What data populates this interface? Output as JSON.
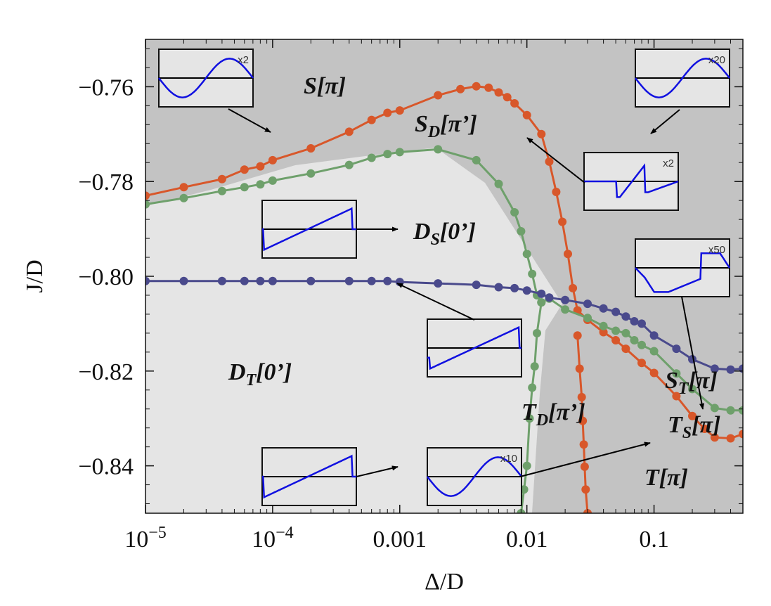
{
  "chart_data": {
    "type": "line",
    "xlabel": "Δ/D",
    "ylabel": "J/D",
    "xscale": "log",
    "xlim": [
      1e-05,
      0.5
    ],
    "ylim": [
      -0.85,
      -0.75
    ],
    "grid": false,
    "legend": "none",
    "xticks": [
      {
        "value": 1e-05,
        "label": "10",
        "exp": "−5"
      },
      {
        "value": 0.0001,
        "label": "10",
        "exp": "−4"
      },
      {
        "value": 0.001,
        "label": "0.001"
      },
      {
        "value": 0.01,
        "label": "0.01"
      },
      {
        "value": 0.1,
        "label": "0.1"
      }
    ],
    "yticks": [
      {
        "value": -0.76,
        "label": "−0.76"
      },
      {
        "value": -0.78,
        "label": "−0.78"
      },
      {
        "value": -0.8,
        "label": "−0.80"
      },
      {
        "value": -0.82,
        "label": "−0.82"
      },
      {
        "value": -0.84,
        "label": "−0.84"
      }
    ],
    "colors": {
      "background_dark": "#c3c3c3",
      "background_light": "#e5e5e5",
      "orange": "#d8572a",
      "green": "#6ea06b",
      "purple": "#4a4a8c",
      "inset_wave": "#1010e0"
    },
    "series": [
      {
        "color": "orange",
        "points": [
          [
            1e-05,
            -0.783
          ],
          [
            2e-05,
            -0.7812
          ],
          [
            4e-05,
            -0.7795
          ],
          [
            6e-05,
            -0.7775
          ],
          [
            8e-05,
            -0.7768
          ],
          [
            0.0001,
            -0.7755
          ],
          [
            0.0002,
            -0.773
          ],
          [
            0.0004,
            -0.7695
          ],
          [
            0.0006,
            -0.767
          ],
          [
            0.0008,
            -0.7655
          ],
          [
            0.001,
            -0.765
          ],
          [
            0.002,
            -0.7618
          ],
          [
            0.003,
            -0.7605
          ],
          [
            0.004,
            -0.7599
          ],
          [
            0.005,
            -0.7602
          ],
          [
            0.006,
            -0.7612
          ],
          [
            0.007,
            -0.7622
          ],
          [
            0.008,
            -0.7635
          ],
          [
            0.01,
            -0.766
          ],
          [
            0.013,
            -0.77
          ],
          [
            0.015,
            -0.7758
          ],
          [
            0.017,
            -0.7822
          ],
          [
            0.019,
            -0.7885
          ],
          [
            0.021,
            -0.7953
          ],
          [
            0.023,
            -0.8025
          ],
          [
            0.025,
            -0.8072
          ],
          [
            0.03,
            -0.8092
          ],
          [
            0.04,
            -0.8118
          ],
          [
            0.05,
            -0.8135
          ],
          [
            0.06,
            -0.8153
          ],
          [
            0.08,
            -0.8183
          ],
          [
            0.1,
            -0.8204
          ],
          [
            0.15,
            -0.8253
          ],
          [
            0.2,
            -0.8295
          ],
          [
            0.25,
            -0.8322
          ],
          [
            0.3,
            -0.834
          ],
          [
            0.4,
            -0.8342
          ],
          [
            0.5,
            -0.8333
          ]
        ]
      },
      {
        "color": "orange",
        "points": [
          [
            0.025,
            -0.8125
          ],
          [
            0.026,
            -0.8195
          ],
          [
            0.027,
            -0.8255
          ],
          [
            0.0275,
            -0.8305
          ],
          [
            0.028,
            -0.8355
          ],
          [
            0.0285,
            -0.8402
          ],
          [
            0.029,
            -0.845
          ],
          [
            0.03,
            -0.85
          ]
        ]
      },
      {
        "color": "green",
        "points": [
          [
            1e-05,
            -0.7848
          ],
          [
            2e-05,
            -0.7835
          ],
          [
            4e-05,
            -0.782
          ],
          [
            6e-05,
            -0.7812
          ],
          [
            8e-05,
            -0.7806
          ],
          [
            0.0001,
            -0.7798
          ],
          [
            0.0002,
            -0.7783
          ],
          [
            0.0004,
            -0.7765
          ],
          [
            0.0006,
            -0.775
          ],
          [
            0.0008,
            -0.7742
          ],
          [
            0.001,
            -0.7738
          ],
          [
            0.002,
            -0.7732
          ],
          [
            0.004,
            -0.7755
          ],
          [
            0.006,
            -0.7805
          ],
          [
            0.008,
            -0.7865
          ],
          [
            0.009,
            -0.7905
          ],
          [
            0.01,
            -0.7953
          ],
          [
            0.011,
            -0.7995
          ],
          [
            0.012,
            -0.804
          ],
          [
            0.013,
            -0.8055
          ],
          [
            0.015,
            -0.8047
          ],
          [
            0.02,
            -0.807
          ],
          [
            0.03,
            -0.8088
          ],
          [
            0.04,
            -0.8105
          ],
          [
            0.05,
            -0.8115
          ],
          [
            0.06,
            -0.812
          ],
          [
            0.07,
            -0.8135
          ],
          [
            0.08,
            -0.8145
          ],
          [
            0.1,
            -0.8158
          ],
          [
            0.15,
            -0.8205
          ],
          [
            0.2,
            -0.8238
          ],
          [
            0.3,
            -0.8278
          ],
          [
            0.4,
            -0.8283
          ],
          [
            0.5,
            -0.8283
          ]
        ]
      },
      {
        "color": "green",
        "points": [
          [
            0.013,
            -0.8055
          ],
          [
            0.012,
            -0.812
          ],
          [
            0.0115,
            -0.819
          ],
          [
            0.011,
            -0.8235
          ],
          [
            0.0105,
            -0.83
          ],
          [
            0.01,
            -0.84
          ],
          [
            0.0095,
            -0.845
          ],
          [
            0.009,
            -0.85
          ]
        ]
      },
      {
        "color": "purple",
        "points": [
          [
            1e-05,
            -0.801
          ],
          [
            2e-05,
            -0.801
          ],
          [
            4e-05,
            -0.801
          ],
          [
            6e-05,
            -0.801
          ],
          [
            8e-05,
            -0.801
          ],
          [
            0.0001,
            -0.801
          ],
          [
            0.0002,
            -0.801
          ],
          [
            0.0004,
            -0.801
          ],
          [
            0.0006,
            -0.801
          ],
          [
            0.0008,
            -0.801
          ],
          [
            0.001,
            -0.8012
          ],
          [
            0.002,
            -0.8015
          ],
          [
            0.004,
            -0.8018
          ],
          [
            0.006,
            -0.8023
          ],
          [
            0.008,
            -0.8025
          ],
          [
            0.01,
            -0.803
          ],
          [
            0.013,
            -0.8037
          ],
          [
            0.015,
            -0.8045
          ],
          [
            0.02,
            -0.805
          ],
          [
            0.03,
            -0.8058
          ],
          [
            0.04,
            -0.8068
          ],
          [
            0.05,
            -0.8075
          ],
          [
            0.06,
            -0.8085
          ],
          [
            0.07,
            -0.8095
          ],
          [
            0.08,
            -0.81
          ],
          [
            0.1,
            -0.8125
          ],
          [
            0.15,
            -0.8153
          ],
          [
            0.2,
            -0.8175
          ],
          [
            0.3,
            -0.8195
          ],
          [
            0.4,
            -0.8197
          ],
          [
            0.5,
            -0.8195
          ]
        ]
      }
    ],
    "annotations": [
      {
        "main": "S[π]",
        "sub": "",
        "rest": ""
      },
      {
        "main": "S",
        "sub": "D",
        "rest": "[π’]"
      },
      {
        "main": "D",
        "sub": "S",
        "rest": "[0’]"
      },
      {
        "main": "D",
        "sub": "T",
        "rest": "[0’]"
      },
      {
        "main": "T",
        "sub": "D",
        "rest": "[π’]"
      },
      {
        "main": "S",
        "sub": "T",
        "rest": "[π]"
      },
      {
        "main": "T",
        "sub": "S",
        "rest": "[π]"
      },
      {
        "main": "T[π]",
        "sub": "",
        "rest": ""
      }
    ],
    "insets": [
      {
        "scale": "x2",
        "wave": "sine-neg"
      },
      {
        "scale": "x20",
        "wave": "sine-neg"
      },
      {
        "scale": "x2",
        "wave": "sawtooth-jumps"
      },
      {
        "scale": "",
        "wave": "sawtooth-up"
      },
      {
        "scale": "x50",
        "wave": "distorted-sine"
      },
      {
        "scale": "",
        "wave": "ramp-up"
      },
      {
        "scale": "",
        "wave": "sawtooth-up"
      },
      {
        "scale": "x10",
        "wave": "sine-neg"
      }
    ]
  }
}
